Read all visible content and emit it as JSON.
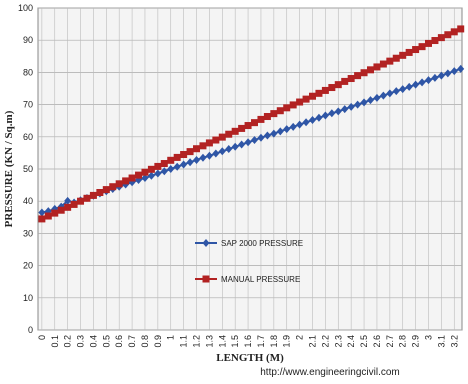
{
  "chart_data": {
    "type": "line",
    "xlabel": "LENGTH (M)",
    "ylabel": "PRESSURE (KN / Sq.m)",
    "source": "http://www.engineeringcivil.com",
    "x": [
      0,
      0.05,
      0.1,
      0.15,
      0.2,
      0.25,
      0.3,
      0.35,
      0.4,
      0.45,
      0.5,
      0.55,
      0.6,
      0.65,
      0.7,
      0.75,
      0.8,
      0.85,
      0.9,
      0.95,
      1.0,
      1.05,
      1.1,
      1.15,
      1.2,
      1.25,
      1.3,
      1.35,
      1.4,
      1.45,
      1.5,
      1.55,
      1.6,
      1.65,
      1.7,
      1.75,
      1.8,
      1.85,
      1.9,
      1.95,
      2.0,
      2.05,
      2.1,
      2.15,
      2.2,
      2.25,
      2.3,
      2.35,
      2.4,
      2.45,
      2.5,
      2.55,
      2.6,
      2.65,
      2.7,
      2.75,
      2.8,
      2.85,
      2.9,
      2.95,
      3.0,
      3.05,
      3.1,
      3.15,
      3.2,
      3.25
    ],
    "series": [
      {
        "name": "SAP 2000 PRESSURE",
        "color": "#2f56a6",
        "marker": "diamond",
        "values": [
          36.5,
          36.9,
          37.6,
          38.3,
          40.1,
          39.6,
          40.3,
          41.0,
          41.7,
          42.4,
          43.1,
          43.8,
          44.5,
          45.2,
          45.9,
          46.6,
          47.2,
          47.9,
          48.6,
          49.3,
          50.0,
          50.7,
          51.4,
          52.1,
          52.8,
          53.5,
          54.1,
          54.8,
          55.5,
          56.2,
          56.9,
          57.6,
          58.3,
          59.0,
          59.7,
          60.4,
          61.0,
          61.7,
          62.4,
          63.1,
          63.8,
          64.5,
          65.2,
          65.9,
          66.6,
          67.3,
          67.9,
          68.6,
          69.3,
          70.0,
          70.7,
          71.4,
          72.1,
          72.8,
          73.5,
          74.2,
          74.8,
          75.5,
          76.2,
          76.9,
          77.6,
          78.3,
          79.0,
          79.7,
          80.4,
          81.1
        ]
      },
      {
        "name": "MANUAL PRESSURE",
        "color": "#b22222",
        "marker": "square",
        "values": [
          34.5,
          35.4,
          36.3,
          37.2,
          38.1,
          39.0,
          40.0,
          40.9,
          41.8,
          42.7,
          43.6,
          44.5,
          45.4,
          46.3,
          47.2,
          48.1,
          49.0,
          49.9,
          50.8,
          51.7,
          52.7,
          53.6,
          54.5,
          55.4,
          56.3,
          57.2,
          58.1,
          59.0,
          59.9,
          60.8,
          61.7,
          62.6,
          63.5,
          64.4,
          65.4,
          66.3,
          67.2,
          68.1,
          69.0,
          69.9,
          70.8,
          71.7,
          72.6,
          73.5,
          74.4,
          75.3,
          76.2,
          77.2,
          78.1,
          79.0,
          79.9,
          80.8,
          81.7,
          82.6,
          83.5,
          84.4,
          85.3,
          86.2,
          87.1,
          88.0,
          89.0,
          89.9,
          90.8,
          91.7,
          92.6,
          93.5
        ]
      }
    ],
    "xlim": [
      -0.03,
      3.26
    ],
    "xticks": [
      0,
      0.1,
      0.2,
      0.3,
      0.4,
      0.5,
      0.6,
      0.7,
      0.8,
      0.9,
      1,
      1.1,
      1.2,
      1.3,
      1.4,
      1.5,
      1.6,
      1.7,
      1.8,
      1.9,
      2,
      2.1,
      2.2,
      2.3,
      2.4,
      2.5,
      2.6,
      2.7,
      2.8,
      2.9,
      3,
      3.1,
      3.2
    ],
    "ylim": [
      0,
      100
    ],
    "yticks": [
      0,
      10,
      20,
      30,
      40,
      50,
      60,
      70,
      80,
      90,
      100
    ],
    "grid": true,
    "legend": "center"
  }
}
